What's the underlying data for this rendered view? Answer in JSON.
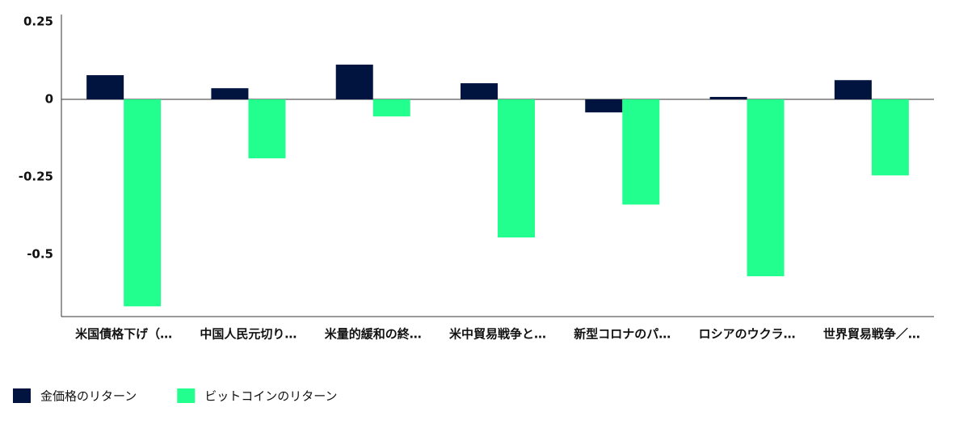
{
  "chart_data": {
    "type": "bar",
    "categories": [
      "米国債格下げ（…",
      "中国人民元切り…",
      "米量的緩和の終…",
      "米中貿易戦争と…",
      "新型コロナのパ…",
      "ロシアのウクラ…",
      "世界貿易戦争／…"
    ],
    "series": [
      {
        "name": "金価格のリターン",
        "color": "#00143f",
        "values": [
          0.078,
          0.036,
          0.112,
          0.052,
          -0.042,
          0.008,
          0.062
        ]
      },
      {
        "name": "ビットコインのリターン",
        "color": "#22ff8e",
        "values": [
          -0.667,
          -0.19,
          -0.055,
          -0.445,
          -0.339,
          -0.57,
          -0.245
        ]
      }
    ],
    "ylim": [
      -0.7,
      0.25
    ],
    "yticks": [
      0.25,
      0,
      -0.25,
      -0.5
    ],
    "grid": false,
    "legend": "bottom-left"
  }
}
